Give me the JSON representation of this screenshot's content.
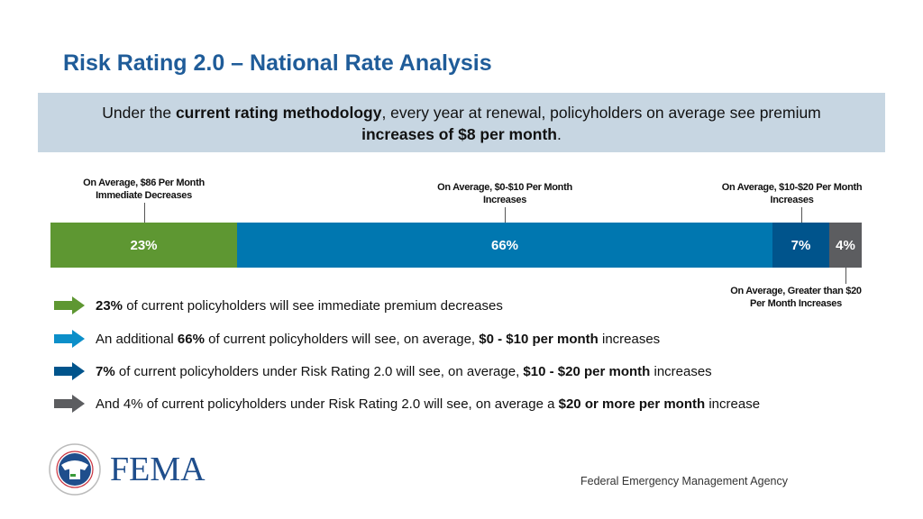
{
  "title": "Risk Rating 2.0 – National Rate Analysis",
  "banner": {
    "pre": "Under the ",
    "bold1": "current rating methodology",
    "mid": ", every year at renewal, policyholders on average see premium ",
    "bold2": "increases of $8 per month",
    "post": "."
  },
  "chart_data": {
    "type": "bar",
    "orientation": "horizontal-stacked-100",
    "categories": [
      "Immediate Decreases",
      "$0-$10 Increases",
      "$10-$20 Increases",
      "Greater than $20 Increases"
    ],
    "values": [
      23,
      66,
      7,
      4
    ],
    "data_labels": [
      "23%",
      "66%",
      "7%",
      "4%"
    ],
    "colors": [
      "#5e9732",
      "#0077b0",
      "#00548c",
      "#5c5d60"
    ],
    "annotations": [
      {
        "line1": "On Average, $86 Per Month",
        "line2": "Immediate Decreases"
      },
      {
        "line1": "On Average, $0-$10 Per Month",
        "line2": "Increases"
      },
      {
        "line1": "On Average, $10-$20 Per Month",
        "line2": "Increases"
      },
      {
        "line1": "On Average, Greater than $20",
        "line2": "Per Month Increases"
      }
    ]
  },
  "bullets": [
    {
      "color": "#5e9732",
      "parts": [
        {
          "b": "23%"
        },
        {
          "t": " of current policyholders will see immediate premium decreases"
        }
      ]
    },
    {
      "color": "#0c8fc9",
      "parts": [
        {
          "t": "An additional "
        },
        {
          "b": "66%"
        },
        {
          "t": " of current policyholders will see, on average, "
        },
        {
          "b": "$0 - $10 per month"
        },
        {
          "t": " increases"
        }
      ]
    },
    {
      "color": "#00548c",
      "parts": [
        {
          "b": "7%"
        },
        {
          "t": " of current policyholders under Risk Rating 2.0 will see, on average, "
        },
        {
          "b": "$10 - $20 per month"
        },
        {
          "t": " increases"
        }
      ]
    },
    {
      "color": "#5c5d60",
      "parts": [
        {
          "t": "And 4% of current policyholders under Risk Rating 2.0 will see, on average a "
        },
        {
          "b": "$20 or more per month"
        },
        {
          "t": " increase"
        }
      ]
    }
  ],
  "logo": {
    "text": "FEMA",
    "seal_text": "U.S. DEPARTMENT OF HOMELAND SECURITY"
  },
  "footer": "Federal Emergency Management Agency"
}
